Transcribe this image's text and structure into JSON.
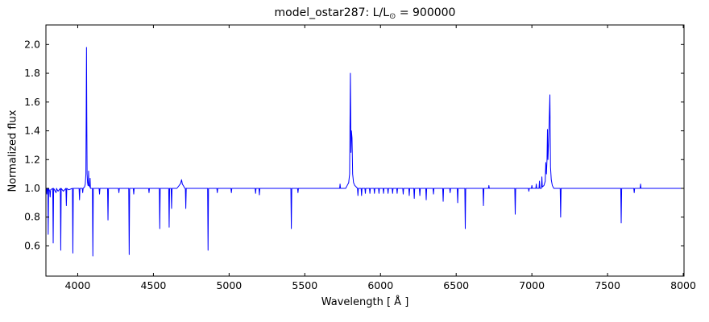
{
  "figure": {
    "title_prefix": "model_ostar287: L/L",
    "title_sub": "⊙",
    "title_suffix": " = 900000",
    "background_color": "#ffffff",
    "frame_color": "#000000"
  },
  "chart_data": {
    "type": "line",
    "title": "model_ostar287: L/L⊙ = 900000",
    "xlabel": "Wavelength [ Å ]",
    "ylabel": "Normalized flux",
    "xlim": [
      3790,
      8005
    ],
    "ylim": [
      0.39,
      2.136
    ],
    "x_ticks": [
      4000,
      4500,
      5000,
      5500,
      6000,
      6500,
      7000,
      7500,
      8000
    ],
    "y_ticks": [
      0.6,
      0.8,
      1.0,
      1.2,
      1.4,
      1.6,
      1.8,
      2.0
    ],
    "grid": false,
    "legend": "none",
    "line_color": "#0000ff",
    "series": [
      {
        "name": "normalized-spectrum",
        "points": [
          [
            3790,
            0.97
          ],
          [
            3793,
            1.0
          ],
          [
            3796,
            0.96
          ],
          [
            3799,
            1.0
          ],
          [
            3803,
            1.0
          ],
          [
            3805,
            0.68
          ],
          [
            3808,
            1.0
          ],
          [
            3815,
            0.98
          ],
          [
            3818,
            0.94
          ],
          [
            3821,
            0.99
          ],
          [
            3835,
            1.0
          ],
          [
            3838,
            0.62
          ],
          [
            3841,
            1.0
          ],
          [
            3857,
            0.97
          ],
          [
            3860,
            1.0
          ],
          [
            3870,
            0.98
          ],
          [
            3885,
            1.0
          ],
          [
            3888,
            0.57
          ],
          [
            3891,
            1.0
          ],
          [
            3905,
            0.98
          ],
          [
            3922,
            1.0
          ],
          [
            3925,
            0.88
          ],
          [
            3928,
            1.0
          ],
          [
            3940,
            0.99
          ],
          [
            3965,
            1.0
          ],
          [
            3968,
            0.55
          ],
          [
            3971,
            1.0
          ],
          [
            4009,
            1.0
          ],
          [
            4012,
            0.92
          ],
          [
            4015,
            1.0
          ],
          [
            4030,
            1.0
          ],
          [
            4033,
            0.97
          ],
          [
            4036,
            1.0
          ],
          [
            4045,
            1.01
          ],
          [
            4050,
            1.03
          ],
          [
            4054,
            1.1
          ],
          [
            4056,
            1.5
          ],
          [
            4058,
            1.98
          ],
          [
            4060,
            1.5
          ],
          [
            4062,
            1.1
          ],
          [
            4065,
            1.04
          ],
          [
            4068,
            1.02
          ],
          [
            4070,
            1.02
          ],
          [
            4072,
            1.12
          ],
          [
            4074,
            1.02
          ],
          [
            4080,
            1.01
          ],
          [
            4082,
            1.07
          ],
          [
            4084,
            1.0
          ],
          [
            4097,
            1.0
          ],
          [
            4100,
            0.53
          ],
          [
            4103,
            1.0
          ],
          [
            4141,
            1.0
          ],
          [
            4144,
            0.96
          ],
          [
            4147,
            1.0
          ],
          [
            4197,
            1.0
          ],
          [
            4200,
            0.78
          ],
          [
            4203,
            1.0
          ],
          [
            4269,
            1.0
          ],
          [
            4272,
            0.97
          ],
          [
            4275,
            1.0
          ],
          [
            4337,
            1.0
          ],
          [
            4340,
            0.54
          ],
          [
            4343,
            1.0
          ],
          [
            4367,
            1.0
          ],
          [
            4370,
            0.96
          ],
          [
            4373,
            1.0
          ],
          [
            4468,
            1.0
          ],
          [
            4471,
            0.97
          ],
          [
            4474,
            1.0
          ],
          [
            4539,
            1.0
          ],
          [
            4542,
            0.72
          ],
          [
            4545,
            1.0
          ],
          [
            4601,
            1.0
          ],
          [
            4604,
            0.73
          ],
          [
            4607,
            1.0
          ],
          [
            4617,
            1.0
          ],
          [
            4620,
            0.86
          ],
          [
            4623,
            1.0
          ],
          [
            4655,
            1.0
          ],
          [
            4670,
            1.02
          ],
          [
            4680,
            1.035
          ],
          [
            4686,
            1.06
          ],
          [
            4691,
            1.03
          ],
          [
            4700,
            1.015
          ],
          [
            4708,
            1.0
          ],
          [
            4711,
            1.0
          ],
          [
            4714,
            0.86
          ],
          [
            4717,
            1.0
          ],
          [
            4858,
            1.0
          ],
          [
            4861,
            0.57
          ],
          [
            4864,
            1.0
          ],
          [
            4919,
            1.0
          ],
          [
            4922,
            0.97
          ],
          [
            4925,
            1.0
          ],
          [
            5012,
            1.0
          ],
          [
            5015,
            0.97
          ],
          [
            5018,
            1.0
          ],
          [
            5172,
            1.0
          ],
          [
            5175,
            0.965
          ],
          [
            5178,
            1.0
          ],
          [
            5197,
            1.0
          ],
          [
            5200,
            0.955
          ],
          [
            5203,
            1.0
          ],
          [
            5408,
            1.0
          ],
          [
            5411,
            0.72
          ],
          [
            5414,
            1.0
          ],
          [
            5452,
            1.0
          ],
          [
            5455,
            0.97
          ],
          [
            5458,
            1.0
          ],
          [
            5730,
            1.0
          ],
          [
            5733,
            1.03
          ],
          [
            5736,
            1.0
          ],
          [
            5770,
            1.0
          ],
          [
            5780,
            1.02
          ],
          [
            5790,
            1.04
          ],
          [
            5796,
            1.1
          ],
          [
            5801,
            1.8
          ],
          [
            5805,
            1.25
          ],
          [
            5808,
            1.4
          ],
          [
            5812,
            1.35
          ],
          [
            5816,
            1.1
          ],
          [
            5822,
            1.04
          ],
          [
            5830,
            1.02
          ],
          [
            5840,
            1.01
          ],
          [
            5848,
            1.0
          ],
          [
            5851,
            0.95
          ],
          [
            5854,
            1.0
          ],
          [
            5872,
            1.0
          ],
          [
            5875,
            0.95
          ],
          [
            5878,
            1.0
          ],
          [
            5897,
            1.0
          ],
          [
            5900,
            0.965
          ],
          [
            5903,
            1.0
          ],
          [
            5927,
            1.0
          ],
          [
            5930,
            0.965
          ],
          [
            5933,
            1.0
          ],
          [
            5957,
            1.0
          ],
          [
            5960,
            0.965
          ],
          [
            5963,
            1.0
          ],
          [
            5987,
            1.0
          ],
          [
            5990,
            0.965
          ],
          [
            5993,
            1.0
          ],
          [
            6017,
            1.0
          ],
          [
            6020,
            0.965
          ],
          [
            6023,
            1.0
          ],
          [
            6047,
            1.0
          ],
          [
            6050,
            0.965
          ],
          [
            6053,
            1.0
          ],
          [
            6077,
            1.0
          ],
          [
            6080,
            0.965
          ],
          [
            6083,
            1.0
          ],
          [
            6107,
            1.0
          ],
          [
            6110,
            0.965
          ],
          [
            6113,
            1.0
          ],
          [
            6147,
            1.0
          ],
          [
            6150,
            0.96
          ],
          [
            6153,
            1.0
          ],
          [
            6187,
            1.0
          ],
          [
            6190,
            0.95
          ],
          [
            6193,
            1.0
          ],
          [
            6220,
            1.0
          ],
          [
            6223,
            0.93
          ],
          [
            6226,
            1.0
          ],
          [
            6257,
            1.0
          ],
          [
            6260,
            0.95
          ],
          [
            6263,
            1.0
          ],
          [
            6299,
            1.0
          ],
          [
            6302,
            0.92
          ],
          [
            6305,
            1.0
          ],
          [
            6347,
            1.0
          ],
          [
            6350,
            0.96
          ],
          [
            6353,
            1.0
          ],
          [
            6411,
            1.0
          ],
          [
            6414,
            0.91
          ],
          [
            6417,
            1.0
          ],
          [
            6457,
            1.0
          ],
          [
            6460,
            0.97
          ],
          [
            6463,
            1.0
          ],
          [
            6507,
            1.0
          ],
          [
            6510,
            0.9
          ],
          [
            6513,
            1.0
          ],
          [
            6557,
            1.0
          ],
          [
            6560,
            0.72
          ],
          [
            6563,
            1.0
          ],
          [
            6677,
            1.0
          ],
          [
            6680,
            0.88
          ],
          [
            6683,
            1.0
          ],
          [
            6713,
            1.0
          ],
          [
            6716,
            1.02
          ],
          [
            6719,
            1.0
          ],
          [
            6887,
            1.0
          ],
          [
            6890,
            0.82
          ],
          [
            6893,
            1.0
          ],
          [
            6977,
            1.0
          ],
          [
            6980,
            0.98
          ],
          [
            6983,
            1.0
          ],
          [
            6997,
            1.0
          ],
          [
            7000,
            1.02
          ],
          [
            7003,
            1.0
          ],
          [
            7026,
            1.0
          ],
          [
            7029,
            1.03
          ],
          [
            7032,
            1.0
          ],
          [
            7047,
            1.0
          ],
          [
            7050,
            1.05
          ],
          [
            7053,
            1.0
          ],
          [
            7063,
            1.0
          ],
          [
            7066,
            1.08
          ],
          [
            7069,
            1.01
          ],
          [
            7080,
            1.02
          ],
          [
            7088,
            1.05
          ],
          [
            7092,
            1.18
          ],
          [
            7096,
            1.1
          ],
          [
            7100,
            1.2
          ],
          [
            7103,
            1.41
          ],
          [
            7106,
            1.2
          ],
          [
            7110,
            1.3
          ],
          [
            7119,
            1.65
          ],
          [
            7123,
            1.15
          ],
          [
            7128,
            1.06
          ],
          [
            7135,
            1.02
          ],
          [
            7145,
            1.0
          ],
          [
            7187,
            1.0
          ],
          [
            7190,
            0.8
          ],
          [
            7193,
            1.0
          ],
          [
            7587,
            1.0
          ],
          [
            7590,
            0.76
          ],
          [
            7593,
            1.0
          ],
          [
            7673,
            1.0
          ],
          [
            7676,
            0.97
          ],
          [
            7679,
            1.0
          ],
          [
            7715,
            1.0
          ],
          [
            7718,
            1.03
          ],
          [
            7721,
            1.0
          ],
          [
            8005,
            1.0
          ]
        ]
      }
    ]
  }
}
